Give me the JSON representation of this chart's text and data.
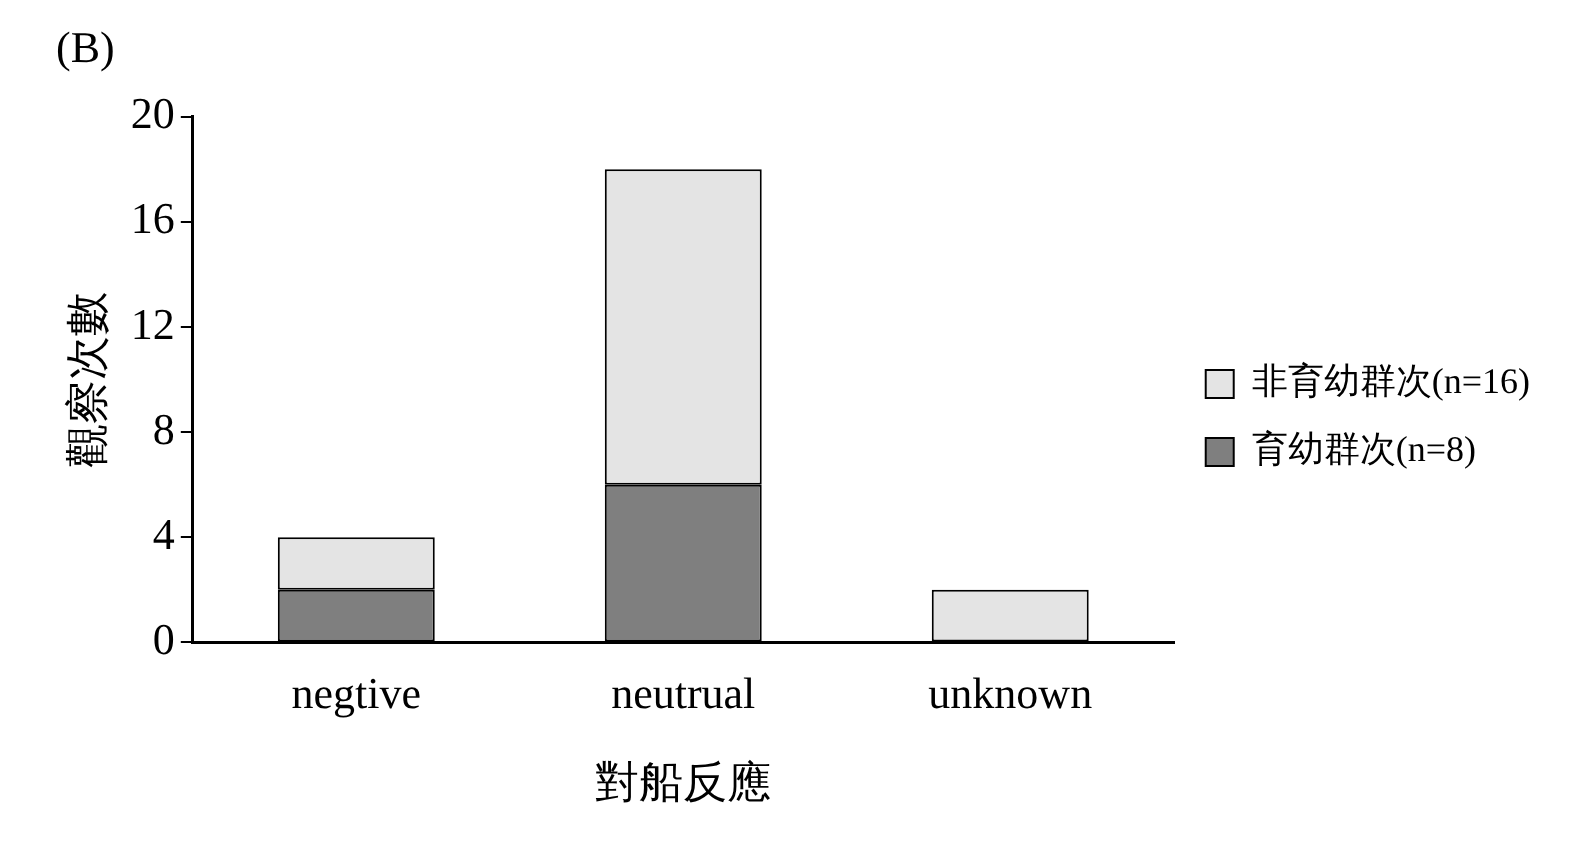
{
  "chart_data": {
    "type": "bar",
    "title": "(B)",
    "xlabel": "對船反應",
    "ylabel": "觀察次數",
    "categories": [
      "negtive",
      "neutrual",
      "unknown"
    ],
    "series": [
      {
        "name": "育幼群次(n=8)",
        "color": "#7f7f7f",
        "values": [
          2,
          6,
          0
        ]
      },
      {
        "name": "非育幼群次(n=16)",
        "color": "#e4e4e4",
        "values": [
          2,
          12,
          2
        ]
      }
    ],
    "stacked": true,
    "ylim": [
      0,
      20
    ],
    "yticks": [
      0,
      4,
      8,
      12,
      16,
      20
    ],
    "legend": "right",
    "grid": false
  }
}
